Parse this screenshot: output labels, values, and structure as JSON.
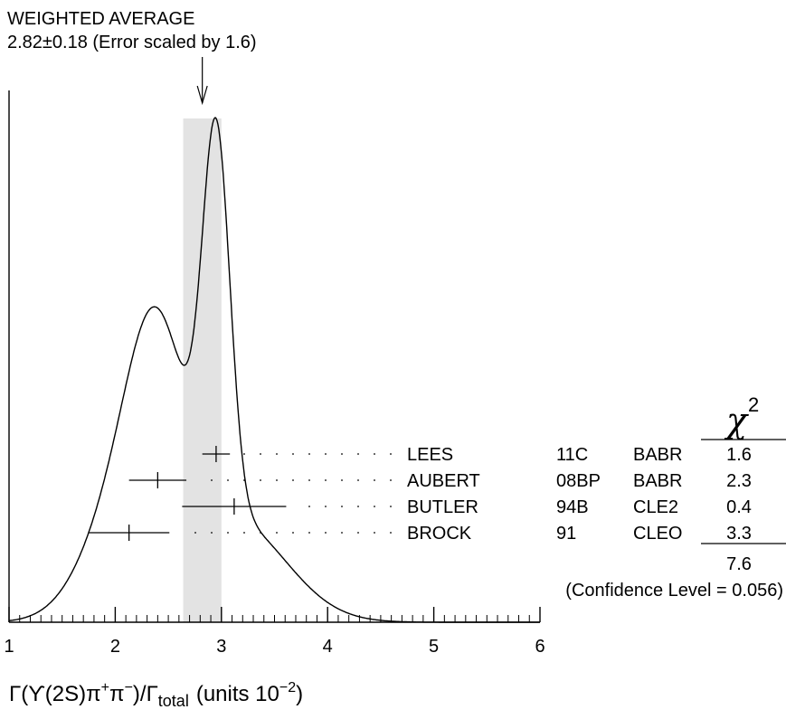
{
  "chart_data": {
    "type": "ideogram",
    "header": {
      "title": "WEIGHTED AVERAGE",
      "value": "2.82±0.18 (Error scaled by 1.6)"
    },
    "weighted_average": {
      "value": 2.82,
      "error": 0.18
    },
    "x_axis": {
      "min": 1,
      "max": 6,
      "ticks": [
        "1",
        "2",
        "3",
        "4",
        "5",
        "6"
      ],
      "label_main": "Γ(ϒ(2S)π",
      "label_sup1": "+",
      "label_pi2": "π",
      "label_sup2": "−",
      "label_div": ")/Γ",
      "label_sub": "total",
      "label_units": "(units 10",
      "label_exp": "−2",
      "label_close": ")"
    },
    "chi2_header": {
      "symbol": "χ",
      "exp": "2"
    },
    "measurements": [
      {
        "name": "LEES",
        "ref": "11C",
        "experiment": "BABR",
        "value": 2.95,
        "error": 0.13,
        "chi2": "1.6"
      },
      {
        "name": "AUBERT",
        "ref": "08BP",
        "experiment": "BABR",
        "value": 2.4,
        "error": 0.27,
        "chi2": "2.3"
      },
      {
        "name": "BUTLER",
        "ref": "94B",
        "experiment": "CLE2",
        "value": 3.12,
        "error": 0.49,
        "chi2": "0.4"
      },
      {
        "name": "BROCK",
        "ref": "91",
        "experiment": "CLEO",
        "value": 2.13,
        "error": 0.38,
        "chi2": "3.3"
      }
    ],
    "chi2_total": "7.6",
    "confidence_level": "(Confidence Level = 0.056)",
    "colors": {
      "band": "#e3e3e3",
      "ink": "#000000"
    }
  }
}
